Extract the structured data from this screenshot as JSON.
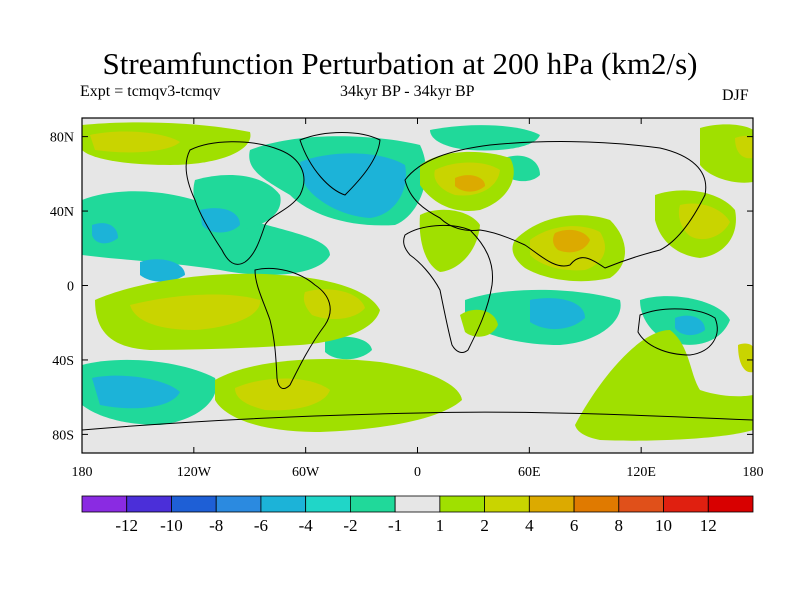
{
  "title": "Streamfunction Perturbation at 200 hPa (km2/s)",
  "experiment_label": "Expt = tcmqv3-tcmqv",
  "period_label": "34kyr BP - 34kyr BP",
  "season": "DJF",
  "map": {
    "projection": "cylindrical equidistant",
    "lon_range": [
      -180,
      180
    ],
    "lat_range": [
      -90,
      90
    ],
    "x_ticks": [
      "180",
      "120W",
      "60W",
      "0",
      "60E",
      "120E",
      "180"
    ],
    "y_ticks": [
      "80N",
      "40N",
      "0",
      "40S",
      "80S"
    ],
    "background_color": "#e6e6e6"
  },
  "colorbar": {
    "labels": [
      "-12",
      "-10",
      "-8",
      "-6",
      "-4",
      "-2",
      "-1",
      "1",
      "2",
      "4",
      "6",
      "8",
      "10",
      "12"
    ],
    "colors": [
      "#8a2be2",
      "#4b2fd9",
      "#1e5fd6",
      "#2b8ae0",
      "#1cb3d8",
      "#20d6c8",
      "#20d99a",
      "#e6e6e6",
      "#a0e000",
      "#c9d400",
      "#dcaa00",
      "#e07a00",
      "#e0501a",
      "#e02010",
      "#d80000"
    ]
  }
}
